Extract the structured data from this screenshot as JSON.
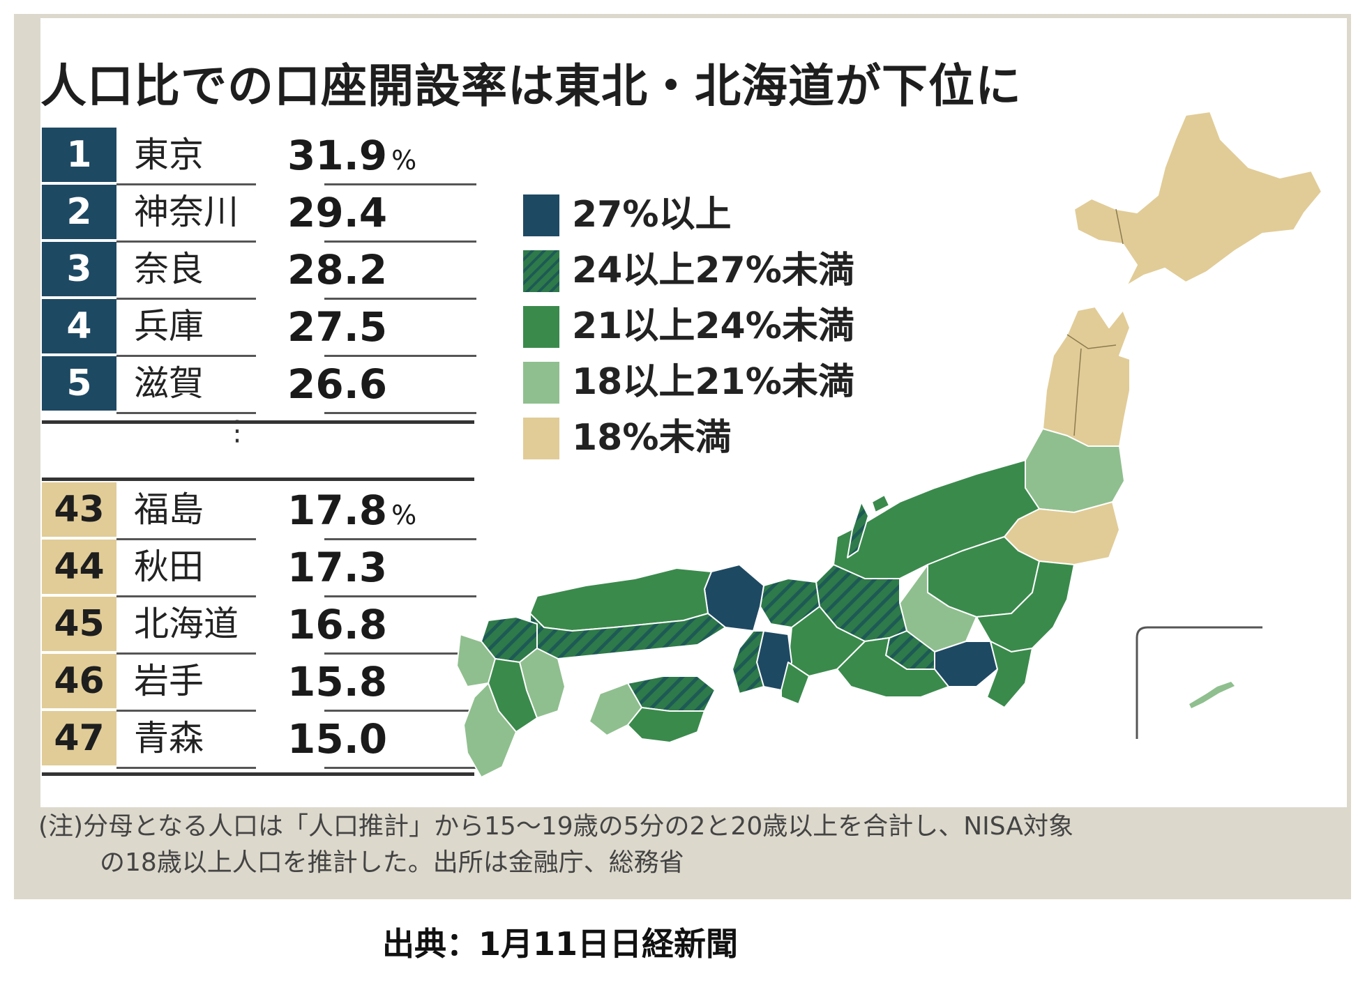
{
  "title": "人口比での口座開設率は東北・北海道が下位に",
  "top_ranks": [
    {
      "rank": "1",
      "prefecture": "東京",
      "value": "31.9",
      "unit": "%"
    },
    {
      "rank": "2",
      "prefecture": "神奈川",
      "value": "29.4",
      "unit": ""
    },
    {
      "rank": "3",
      "prefecture": "奈良",
      "value": "28.2",
      "unit": ""
    },
    {
      "rank": "4",
      "prefecture": "兵庫",
      "value": "27.5",
      "unit": ""
    },
    {
      "rank": "5",
      "prefecture": "滋賀",
      "value": "26.6",
      "unit": ""
    }
  ],
  "ellipsis": "⋮",
  "bottom_ranks": [
    {
      "rank": "43",
      "prefecture": "福島",
      "value": "17.8",
      "unit": "%"
    },
    {
      "rank": "44",
      "prefecture": "秋田",
      "value": "17.3",
      "unit": ""
    },
    {
      "rank": "45",
      "prefecture": "北海道",
      "value": "16.8",
      "unit": ""
    },
    {
      "rank": "46",
      "prefecture": "岩手",
      "value": "15.8",
      "unit": ""
    },
    {
      "rank": "47",
      "prefecture": "青森",
      "value": "15.0",
      "unit": ""
    }
  ],
  "legend": [
    {
      "label": "27%以上",
      "color": "#1e4963",
      "pattern": "solid"
    },
    {
      "label": "24以上27%未満",
      "color": "#2e7a4a",
      "pattern": "hatched"
    },
    {
      "label": "21以上24%未満",
      "color": "#3a8a4c",
      "pattern": "solid"
    },
    {
      "label": "18以上21%未満",
      "color": "#8fbf8e",
      "pattern": "solid"
    },
    {
      "label": "18%未満",
      "color": "#e1cc97",
      "pattern": "solid"
    }
  ],
  "note": {
    "line1": "(注)分母となる人口は「人口推計」から15～19歳の5分の2と20歳以上を合計し、NISA対象",
    "line2": "の18歳以上人口を推計した。出所は金融庁、総務省"
  },
  "source": "出典：1月11日日経新聞"
}
